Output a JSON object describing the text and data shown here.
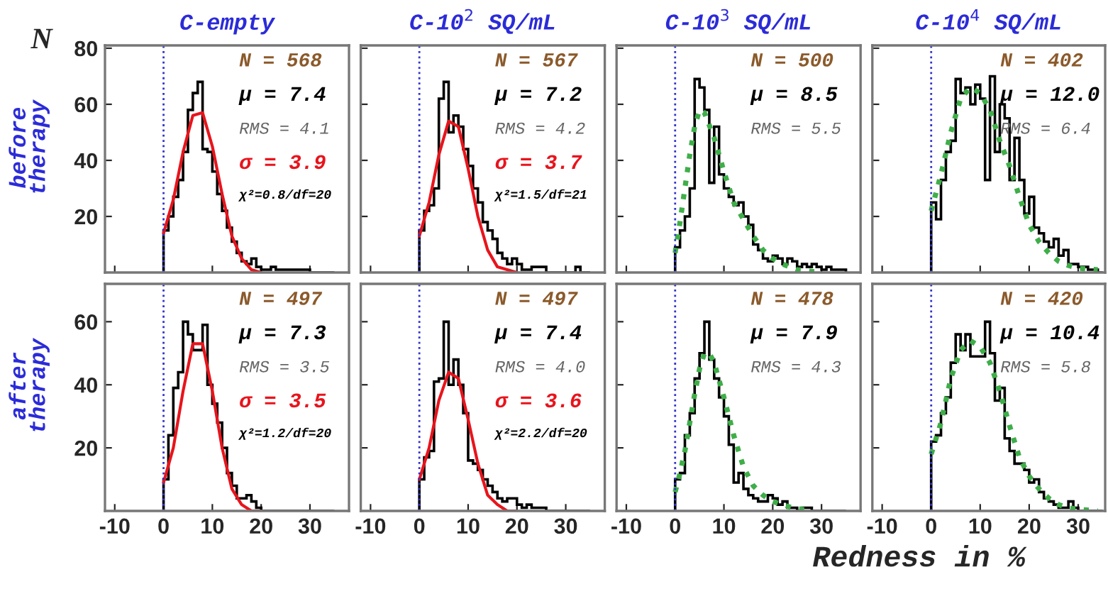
{
  "chart_data": [
    {
      "type": "histogram",
      "title": "C-empty",
      "ylabel": "N",
      "xlim": [
        -12,
        38
      ],
      "xticks": [
        -10,
        0,
        10,
        20,
        30
      ],
      "ylim": [
        0,
        81
      ],
      "yticks": [
        20,
        40,
        60,
        80
      ],
      "tick_labels": "y",
      "ref_lines": [
        {
          "axis": "x",
          "value": 0,
          "color": "#3333cc",
          "line_style": "dotted"
        }
      ],
      "annotations": [
        "N = 568",
        "μ = 7.4",
        "RMS = 4.1",
        "σ = 3.9",
        "χ²=0.8/df=20",
        "before therapy"
      ],
      "series": [
        {
          "type": "histogram",
          "color": "#000000",
          "bins": [
            0,
            1,
            2,
            3,
            4,
            5,
            6,
            7,
            8,
            9,
            10,
            11,
            12,
            13,
            14,
            15,
            16,
            17,
            18,
            19,
            20,
            21,
            22,
            23,
            24,
            25,
            26,
            27,
            28,
            29,
            30,
            31,
            32,
            33,
            34,
            35
          ],
          "values": [
            15,
            20,
            27,
            33,
            43,
            58,
            64,
            68,
            44,
            43,
            36,
            28,
            22,
            16,
            11,
            7,
            4,
            3,
            5,
            2,
            1,
            1,
            2,
            1,
            1,
            1,
            1,
            1,
            1,
            1,
            0,
            0,
            0,
            0,
            0
          ]
        },
        {
          "type": "line",
          "color": "#e8141c",
          "line_style": "solid",
          "x": [
            0,
            2,
            4,
            6,
            8,
            10,
            12,
            14,
            16,
            18,
            20
          ],
          "values": [
            14,
            26,
            43,
            56,
            57,
            45,
            28,
            13,
            5,
            1,
            0
          ]
        }
      ]
    },
    {
      "type": "histogram",
      "title": "C-10$^{2}$ SQ/mL",
      "xlim": [
        -12,
        38
      ],
      "xticks": [
        -10,
        0,
        10,
        20,
        30
      ],
      "ylim": [
        0,
        81
      ],
      "yticks": [
        20,
        40,
        60,
        80
      ],
      "tick_labels": false,
      "ref_lines": [
        {
          "axis": "x",
          "value": 0,
          "color": "#3333cc",
          "line_style": "dotted"
        }
      ],
      "annotations": [
        "N = 567",
        "μ = 7.2",
        "RMS = 4.2",
        "σ = 3.7",
        "χ²=1.5/df=21"
      ],
      "series": [
        {
          "type": "histogram",
          "color": "#000000",
          "bins": [
            0,
            1,
            2,
            3,
            4,
            5,
            6,
            7,
            8,
            9,
            10,
            11,
            12,
            13,
            14,
            15,
            16,
            17,
            18,
            19,
            20,
            21,
            22,
            23,
            24,
            25,
            26,
            27,
            28,
            29,
            30,
            31,
            32,
            33,
            34,
            35
          ],
          "values": [
            15,
            22,
            24,
            30,
            62,
            68,
            50,
            56,
            52,
            44,
            38,
            30,
            25,
            18,
            15,
            12,
            7,
            5,
            3,
            5,
            3,
            1,
            1,
            2,
            2,
            2,
            0,
            0,
            0,
            0,
            0,
            0,
            2,
            0,
            0
          ]
        },
        {
          "type": "line",
          "color": "#e8141c",
          "line_style": "solid",
          "x": [
            0,
            2,
            4,
            6,
            8,
            10,
            12,
            14,
            16,
            18,
            20
          ],
          "values": [
            13,
            25,
            42,
            54,
            52,
            37,
            20,
            8,
            2,
            1,
            0
          ]
        }
      ]
    },
    {
      "type": "histogram",
      "title": "C-10$^{3}$ SQ/mL",
      "xlim": [
        -12,
        38
      ],
      "xticks": [
        -10,
        0,
        10,
        20,
        30
      ],
      "ylim": [
        0,
        81
      ],
      "yticks": [
        20,
        40,
        60,
        80
      ],
      "tick_labels": false,
      "ref_lines": [
        {
          "axis": "x",
          "value": 0,
          "color": "#3333cc",
          "line_style": "dotted"
        }
      ],
      "annotations": [
        "N = 500",
        "μ = 8.5",
        "RMS = 5.5"
      ],
      "series": [
        {
          "type": "histogram",
          "color": "#000000",
          "bins": [
            0,
            1,
            2,
            3,
            4,
            5,
            6,
            7,
            8,
            9,
            10,
            11,
            12,
            13,
            14,
            15,
            16,
            17,
            18,
            19,
            20,
            21,
            22,
            23,
            24,
            25,
            26,
            27,
            28,
            29,
            30,
            31,
            32,
            33,
            34,
            35
          ],
          "values": [
            9,
            15,
            20,
            30,
            69,
            66,
            58,
            32,
            52,
            35,
            30,
            27,
            24,
            25,
            20,
            17,
            10,
            8,
            5,
            4,
            6,
            5,
            3,
            5,
            4,
            2,
            3,
            2,
            3,
            2,
            1,
            2,
            1,
            1,
            1
          ]
        },
        {
          "type": "line",
          "color": "#3fae49",
          "line_style": "dotted",
          "x": [
            0,
            1,
            2,
            3,
            4,
            5,
            6,
            8,
            10,
            12,
            14,
            16,
            18,
            20,
            22,
            25,
            30
          ],
          "values": [
            7,
            18,
            30,
            42,
            52,
            58,
            57,
            48,
            36,
            25,
            19,
            13,
            8,
            5,
            3,
            1,
            0
          ]
        }
      ]
    },
    {
      "type": "histogram",
      "title": "C-10$^{4}$ SQ/mL",
      "xlim": [
        -12,
        35.5
      ],
      "xticks": [
        -10,
        0,
        10,
        20,
        30
      ],
      "ylim": [
        0,
        81
      ],
      "yticks": [
        20,
        40,
        60,
        80
      ],
      "tick_labels": false,
      "ref_lines": [
        {
          "axis": "x",
          "value": 0,
          "color": "#3333cc",
          "line_style": "dotted"
        }
      ],
      "annotations": [
        "N = 402",
        "μ = 12.0",
        "RMS = 6.4"
      ],
      "series": [
        {
          "type": "histogram",
          "color": "#000000",
          "bins": [
            0,
            1,
            2,
            3,
            4,
            5,
            6,
            7,
            8,
            9,
            10,
            11,
            12,
            13,
            14,
            15,
            16,
            17,
            18,
            19,
            20,
            21,
            22,
            23,
            24,
            25,
            26,
            27,
            28,
            29,
            30,
            31,
            32,
            33,
            34,
            35
          ],
          "values": [
            25,
            19,
            33,
            43,
            47,
            69,
            64,
            66,
            60,
            67,
            62,
            33,
            70,
            43,
            60,
            55,
            33,
            48,
            33,
            21,
            27,
            16,
            14,
            11,
            9,
            12,
            6,
            8,
            3,
            3,
            2,
            2,
            1,
            1,
            0
          ]
        },
        {
          "type": "line",
          "color": "#3fae49",
          "line_style": "dotted",
          "x": [
            0,
            2,
            4,
            6,
            8,
            10,
            12,
            14,
            16,
            18,
            20,
            22,
            24,
            26,
            28,
            30,
            34
          ],
          "values": [
            22,
            35,
            50,
            62,
            66,
            64,
            58,
            47,
            38,
            27,
            17,
            11,
            7,
            4,
            2.5,
            1.5,
            1
          ]
        }
      ]
    },
    {
      "type": "histogram",
      "xlim": [
        -12,
        38
      ],
      "xticks": [
        -10,
        0,
        10,
        20,
        30
      ],
      "ylim": [
        0,
        72
      ],
      "yticks": [
        20,
        40,
        60
      ],
      "ref_lines": [
        {
          "axis": "x",
          "value": 0,
          "color": "#3333cc",
          "line_style": "dotted"
        }
      ],
      "annotations": [
        "N = 497",
        "μ = 7.3",
        "RMS = 3.5",
        "σ = 3.5",
        "χ²=1.2/df=20",
        "after therapy"
      ],
      "series": [
        {
          "type": "histogram",
          "color": "#000000",
          "bins": [
            0,
            1,
            2,
            3,
            4,
            5,
            6,
            7,
            8,
            9,
            10,
            11,
            12,
            13,
            14,
            15,
            16,
            17,
            18,
            19,
            20,
            21,
            22,
            23,
            24,
            25,
            26,
            27,
            28,
            29,
            30,
            31,
            32,
            33,
            34,
            35
          ],
          "values": [
            10,
            24,
            39,
            44,
            60,
            56,
            51,
            51,
            59,
            40,
            34,
            28,
            20,
            12,
            8,
            4,
            4,
            5,
            3,
            1,
            0,
            0,
            0,
            0,
            0,
            0,
            0,
            0,
            0,
            0,
            0,
            0,
            0,
            0,
            0
          ]
        },
        {
          "type": "line",
          "color": "#e8141c",
          "line_style": "solid",
          "x": [
            0,
            2,
            4,
            6,
            8,
            10,
            12,
            14,
            16,
            18,
            20
          ],
          "values": [
            9,
            20,
            38,
            53,
            53,
            38,
            20,
            7,
            2,
            0,
            0
          ]
        }
      ]
    },
    {
      "type": "histogram",
      "xlim": [
        -12,
        38
      ],
      "xticks": [
        -10,
        0,
        10,
        20,
        30
      ],
      "ylim": [
        0,
        72
      ],
      "yticks": [
        20,
        40,
        60
      ],
      "tick_labels": "x",
      "ref_lines": [
        {
          "axis": "x",
          "value": 0,
          "color": "#3333cc",
          "line_style": "dotted"
        }
      ],
      "annotations": [
        "N = 497",
        "μ = 7.4",
        "RMS = 4.0",
        "σ = 3.6",
        "χ²=2.2/df=20"
      ],
      "series": [
        {
          "type": "histogram",
          "color": "#000000",
          "bins": [
            0,
            1,
            2,
            3,
            4,
            5,
            6,
            7,
            8,
            9,
            10,
            11,
            12,
            13,
            14,
            15,
            16,
            17,
            18,
            19,
            20,
            21,
            22,
            23,
            24,
            25,
            26,
            27,
            28,
            29,
            30,
            31,
            32,
            33,
            34,
            35
          ],
          "values": [
            10,
            17,
            19,
            41,
            42,
            60,
            40,
            48,
            40,
            31,
            16,
            15,
            13,
            10,
            8,
            6,
            4,
            3,
            4,
            4,
            2,
            1,
            2,
            1,
            1,
            1,
            0,
            0,
            0,
            0,
            0,
            0,
            0,
            0,
            0
          ]
        },
        {
          "type": "line",
          "color": "#e8141c",
          "line_style": "solid",
          "x": [
            0,
            2,
            4,
            6,
            8,
            10,
            12,
            14,
            16,
            18,
            20
          ],
          "values": [
            10,
            20,
            35,
            44,
            42,
            29,
            15,
            5,
            2,
            0,
            0
          ]
        }
      ]
    },
    {
      "type": "histogram",
      "xlim": [
        -12,
        38
      ],
      "xticks": [
        -10,
        0,
        10,
        20,
        30
      ],
      "ylim": [
        0,
        72
      ],
      "yticks": [
        20,
        40,
        60
      ],
      "tick_labels": "x",
      "ref_lines": [
        {
          "axis": "x",
          "value": 0,
          "color": "#3333cc",
          "line_style": "dotted"
        }
      ],
      "annotations": [
        "N = 478",
        "μ = 7.9",
        "RMS = 4.3"
      ],
      "series": [
        {
          "type": "histogram",
          "color": "#000000",
          "bins": [
            0,
            1,
            2,
            3,
            4,
            5,
            6,
            7,
            8,
            9,
            10,
            11,
            12,
            13,
            14,
            15,
            16,
            17,
            18,
            19,
            20,
            21,
            22,
            23,
            24,
            25,
            26,
            27,
            28,
            29,
            30,
            31,
            32,
            33,
            34,
            35
          ],
          "values": [
            10,
            12,
            24,
            31,
            42,
            50,
            60,
            48,
            42,
            36,
            30,
            21,
            9,
            12,
            7,
            5,
            4,
            3,
            3,
            5,
            4,
            2,
            3,
            1,
            1,
            0,
            1,
            1,
            0,
            0,
            0,
            0,
            0,
            0,
            0
          ]
        },
        {
          "type": "line",
          "color": "#3fae49",
          "line_style": "dotted",
          "x": [
            0,
            1,
            2,
            3,
            4,
            5,
            6,
            7,
            8,
            10,
            12,
            14,
            16,
            18,
            20,
            24,
            28
          ],
          "values": [
            6,
            12,
            19,
            28,
            37,
            45,
            50,
            50,
            47,
            36,
            24,
            14,
            8,
            5,
            3,
            1,
            0
          ]
        }
      ]
    },
    {
      "type": "histogram",
      "xlabel": "Redness in %",
      "xlim": [
        -12,
        35.5
      ],
      "xticks": [
        -10,
        0,
        10,
        20,
        30
      ],
      "ylim": [
        0,
        72
      ],
      "yticks": [
        20,
        40,
        60
      ],
      "tick_labels": "x",
      "ref_lines": [
        {
          "axis": "x",
          "value": 0,
          "color": "#3333cc",
          "line_style": "dotted"
        }
      ],
      "annotations": [
        "N = 420",
        "μ = 10.4",
        "RMS = 5.8"
      ],
      "series": [
        {
          "type": "histogram",
          "color": "#000000",
          "bins": [
            0,
            1,
            2,
            3,
            4,
            5,
            6,
            7,
            8,
            9,
            10,
            11,
            12,
            13,
            14,
            15,
            16,
            17,
            18,
            19,
            20,
            21,
            22,
            23,
            24,
            25,
            26,
            27,
            28,
            29,
            30,
            31,
            32,
            33,
            34,
            35
          ],
          "values": [
            22,
            24,
            31,
            36,
            47,
            56,
            51,
            56,
            49,
            49,
            49,
            60,
            50,
            35,
            39,
            23,
            19,
            15,
            15,
            13,
            9,
            10,
            6,
            4,
            3,
            2,
            1,
            1,
            3,
            1,
            0,
            0,
            0,
            0,
            0
          ]
        },
        {
          "type": "line",
          "color": "#3fae49",
          "line_style": "dotted",
          "x": [
            0,
            2,
            4,
            6,
            8,
            10,
            12,
            14,
            16,
            18,
            20,
            22,
            24,
            26,
            28,
            30,
            34
          ],
          "values": [
            18,
            28,
            42,
            51,
            54,
            52,
            47,
            38,
            27,
            17,
            11,
            7,
            4,
            2,
            1,
            0.5,
            0
          ]
        }
      ]
    }
  ]
}
